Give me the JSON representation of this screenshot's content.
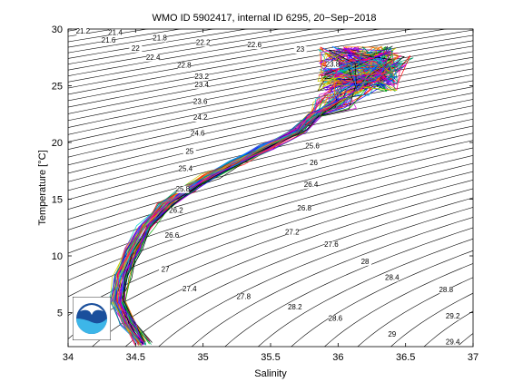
{
  "chart_data": {
    "type": "line",
    "title": "WMO ID 5902417, internal ID 6295, 20−Sep−2018",
    "xlabel": "Salinity",
    "ylabel": "Temperature [°C]",
    "xlim": [
      34,
      37
    ],
    "ylim": [
      2,
      30
    ],
    "x_ticks": [
      "34",
      "34.5",
      "35",
      "35.5",
      "36",
      "36.5",
      "37"
    ],
    "y_ticks": [
      "5",
      "10",
      "15",
      "20",
      "25",
      "30"
    ],
    "grid": false,
    "density_contour_labels": [
      {
        "label": "21.2",
        "x": 34.11,
        "y": 29.6
      },
      {
        "label": "21.4",
        "x": 34.35,
        "y": 29.5
      },
      {
        "label": "21.6",
        "x": 34.3,
        "y": 28.8
      },
      {
        "label": "21.8",
        "x": 34.68,
        "y": 29.0
      },
      {
        "label": "22",
        "x": 34.5,
        "y": 28.1
      },
      {
        "label": "22.2",
        "x": 35.0,
        "y": 28.6
      },
      {
        "label": "22.4",
        "x": 34.63,
        "y": 27.3
      },
      {
        "label": "22.6",
        "x": 35.38,
        "y": 28.4
      },
      {
        "label": "22.8",
        "x": 34.86,
        "y": 26.6
      },
      {
        "label": "23",
        "x": 35.72,
        "y": 28.0
      },
      {
        "label": "23.2",
        "x": 34.99,
        "y": 25.6
      },
      {
        "label": "23.4",
        "x": 34.99,
        "y": 24.9
      },
      {
        "label": "23.6",
        "x": 34.98,
        "y": 23.4
      },
      {
        "label": "23.8",
        "x": 35.96,
        "y": 26.7
      },
      {
        "label": "24.2",
        "x": 34.98,
        "y": 22.0
      },
      {
        "label": "24.6",
        "x": 34.96,
        "y": 20.6
      },
      {
        "label": "25",
        "x": 34.9,
        "y": 19.0
      },
      {
        "label": "25.4",
        "x": 34.87,
        "y": 17.5
      },
      {
        "label": "25.6",
        "x": 35.81,
        "y": 19.5
      },
      {
        "label": "25.8",
        "x": 34.85,
        "y": 15.7
      },
      {
        "label": "26",
        "x": 35.82,
        "y": 18.0
      },
      {
        "label": "26.2",
        "x": 34.8,
        "y": 13.8
      },
      {
        "label": "26.4",
        "x": 35.8,
        "y": 16.1
      },
      {
        "label": "26.6",
        "x": 34.77,
        "y": 11.6
      },
      {
        "label": "26.8",
        "x": 35.75,
        "y": 14.0
      },
      {
        "label": "27",
        "x": 34.72,
        "y": 8.6
      },
      {
        "label": "27.2",
        "x": 35.66,
        "y": 11.9
      },
      {
        "label": "27.4",
        "x": 34.9,
        "y": 6.9
      },
      {
        "label": "27.6",
        "x": 35.95,
        "y": 10.8
      },
      {
        "label": "27.8",
        "x": 35.3,
        "y": 6.2
      },
      {
        "label": "28",
        "x": 36.2,
        "y": 9.3
      },
      {
        "label": "28.2",
        "x": 35.68,
        "y": 5.3
      },
      {
        "label": "28.4",
        "x": 36.4,
        "y": 7.9
      },
      {
        "label": "28.6",
        "x": 35.98,
        "y": 4.3
      },
      {
        "label": "28.8",
        "x": 36.8,
        "y": 6.8
      },
      {
        "label": "29",
        "x": 36.4,
        "y": 2.9
      },
      {
        "label": "29.2",
        "x": 36.85,
        "y": 4.5
      },
      {
        "label": "29.4",
        "x": 36.85,
        "y": 2.2
      }
    ],
    "profile_envelope": {
      "salinity": [
        34.55,
        34.45,
        34.37,
        34.4,
        34.48,
        34.58,
        34.72,
        34.88,
        35.05,
        35.25,
        35.48,
        35.7,
        35.83,
        35.98,
        36.1,
        36.25,
        36.4
      ],
      "temperature": [
        2.3,
        4.0,
        6.0,
        8.2,
        10.5,
        12.6,
        14.5,
        15.8,
        17.0,
        18.2,
        19.6,
        21.0,
        22.4,
        23.6,
        24.8,
        26.0,
        27.0
      ]
    }
  }
}
